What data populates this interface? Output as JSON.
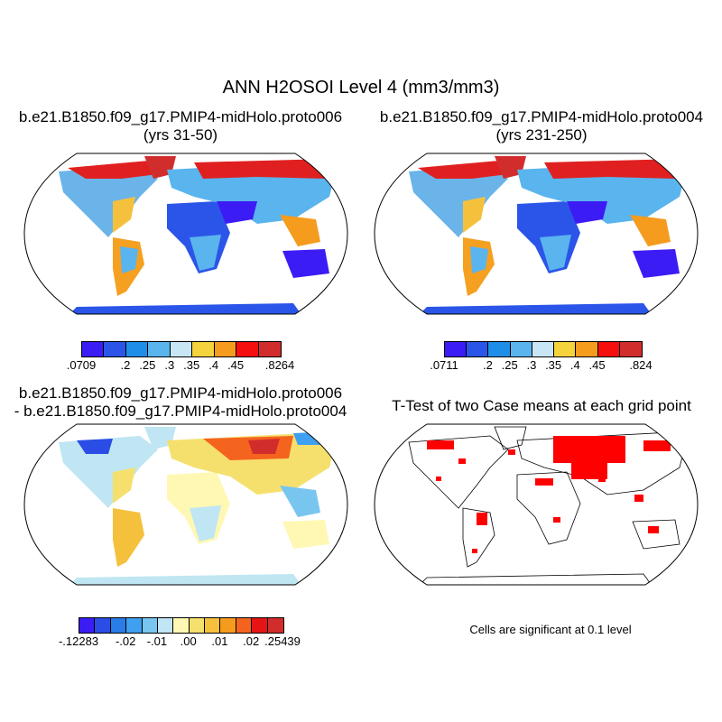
{
  "main_title": "ANN H2OSOI Level 4 (mm3/mm3)",
  "panels": {
    "p1": {
      "title_line1": "b.e21.B1850.f09_g17.PMIP4-midHolo.proto006",
      "title_line2": "(yrs 31-50)"
    },
    "p2": {
      "title_line1": "b.e21.B1850.f09_g17.PMIP4-midHolo.proto004",
      "title_line2": "(yrs 231-250)"
    },
    "p3": {
      "title_line1": "b.e21.B1850.f09_g17.PMIP4-midHolo.proto006",
      "title_line2": "- b.e21.B1850.f09_g17.PMIP4-midHolo.proto004"
    },
    "p4": {
      "title_line1": "T-Test of two Case means at each grid point"
    }
  },
  "colorbars": {
    "cb1": {
      "colors": [
        "#3c1cf5",
        "#2b55e8",
        "#1f8ee8",
        "#5ab4ee",
        "#c8e6f5",
        "#f5d33c",
        "#f59b1e",
        "#f50f0f",
        "#d22d2d"
      ],
      "labels": [
        ".0709",
        ".2",
        ".25",
        ".3",
        ".35",
        ".4",
        ".45",
        ".8264"
      ],
      "label_positions": [
        0,
        2,
        3,
        4,
        5,
        6,
        7,
        9
      ]
    },
    "cb2": {
      "colors": [
        "#3c1cf5",
        "#2b55e8",
        "#1f8ee8",
        "#5ab4ee",
        "#c8e6f5",
        "#f5d33c",
        "#f59b1e",
        "#f50f0f",
        "#d22d2d"
      ],
      "labels": [
        ".0711",
        ".2",
        ".25",
        ".3",
        ".35",
        ".4",
        ".45",
        ".824"
      ],
      "label_positions": [
        0,
        2,
        3,
        4,
        5,
        6,
        7,
        9
      ]
    },
    "cb3": {
      "colors": [
        "#3c1cf5",
        "#2b4de6",
        "#2a7ce8",
        "#3f9ff0",
        "#78c6f0",
        "#bfe6f2",
        "#fff8b4",
        "#f5e06e",
        "#f5c13c",
        "#f59b1e",
        "#f5641e",
        "#e61414",
        "#d22d2d"
      ],
      "labels": [
        "-.12283",
        "-.02",
        "-.01",
        ".00",
        ".01",
        ".02",
        ".25439"
      ],
      "label_positions": [
        0,
        3,
        5,
        7,
        9,
        11,
        13
      ]
    }
  },
  "significance_note": "Cells are significant at 0.1 level",
  "significance_color": "#ff0000"
}
